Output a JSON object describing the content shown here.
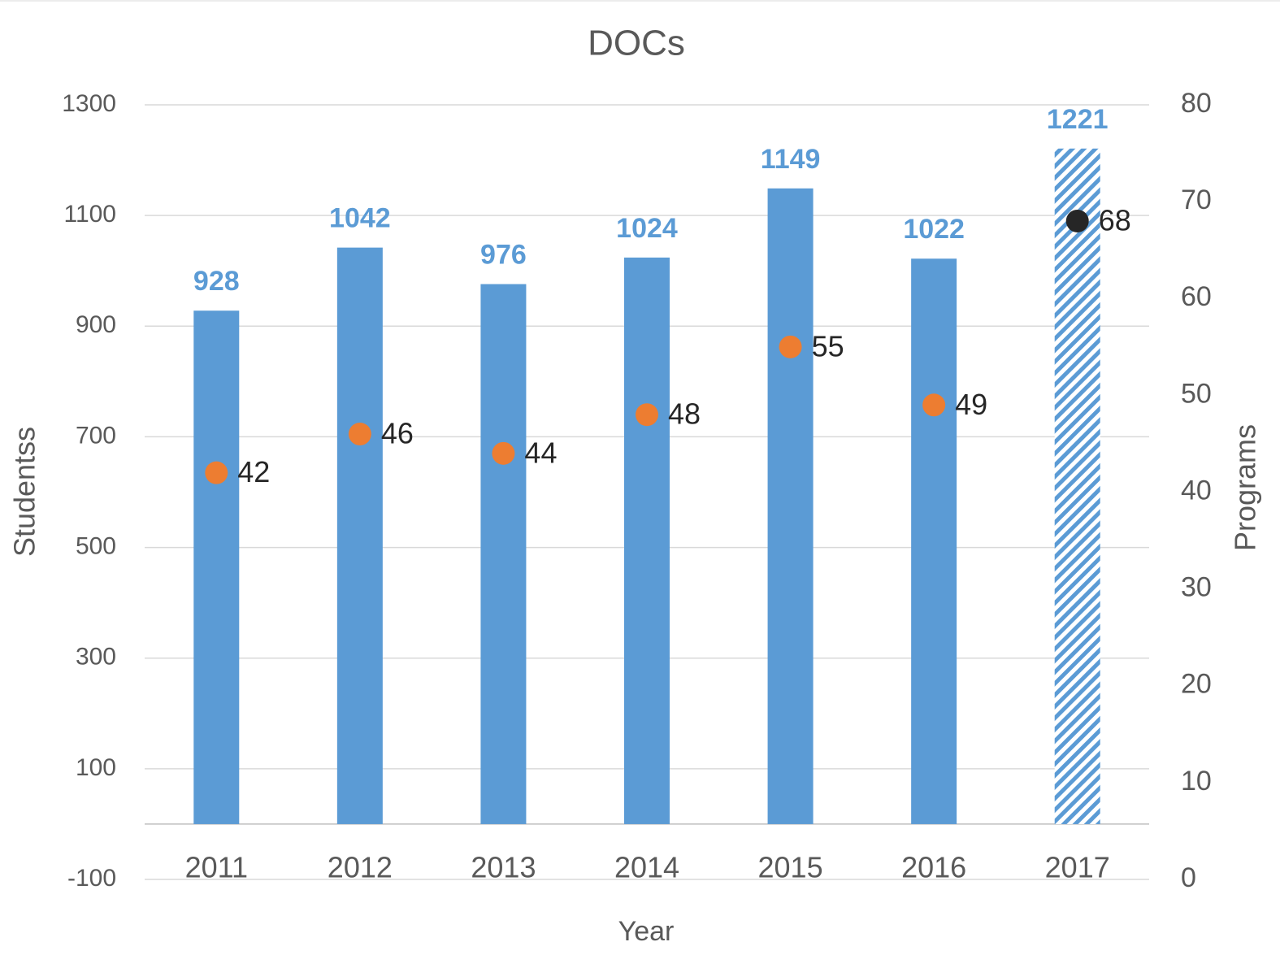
{
  "chart_data": {
    "type": "bar_dot",
    "title": "DOCs",
    "x_label": "Year",
    "y_label": "Studentss",
    "y2_label": "Programs",
    "categories": [
      "2011",
      "2012",
      "2013",
      "2014",
      "2015",
      "2016",
      "2017"
    ],
    "series": [
      {
        "name": "Students",
        "type": "bar",
        "color": "#5b9bd5",
        "fills": [
          "solid",
          "solid",
          "solid",
          "solid",
          "solid",
          "solid",
          "hatched"
        ],
        "values": [
          928,
          1042,
          976,
          1024,
          1149,
          1022,
          1221
        ]
      },
      {
        "name": "Programs",
        "type": "dot",
        "axis": "y2",
        "colors": [
          "#ed7d31",
          "#ed7d31",
          "#ed7d31",
          "#ed7d31",
          "#ed7d31",
          "#ed7d31",
          "#262626"
        ],
        "values": [
          42,
          46,
          44,
          48,
          55,
          49,
          68
        ]
      }
    ],
    "ylim": [
      -100,
      1300
    ],
    "yticks": [
      -100,
      100,
      300,
      500,
      700,
      900,
      1100,
      1300
    ],
    "y2lim": [
      0,
      80
    ],
    "y2ticks": [
      0,
      10,
      20,
      30,
      40,
      50,
      60,
      70,
      80
    ],
    "grid": true
  }
}
